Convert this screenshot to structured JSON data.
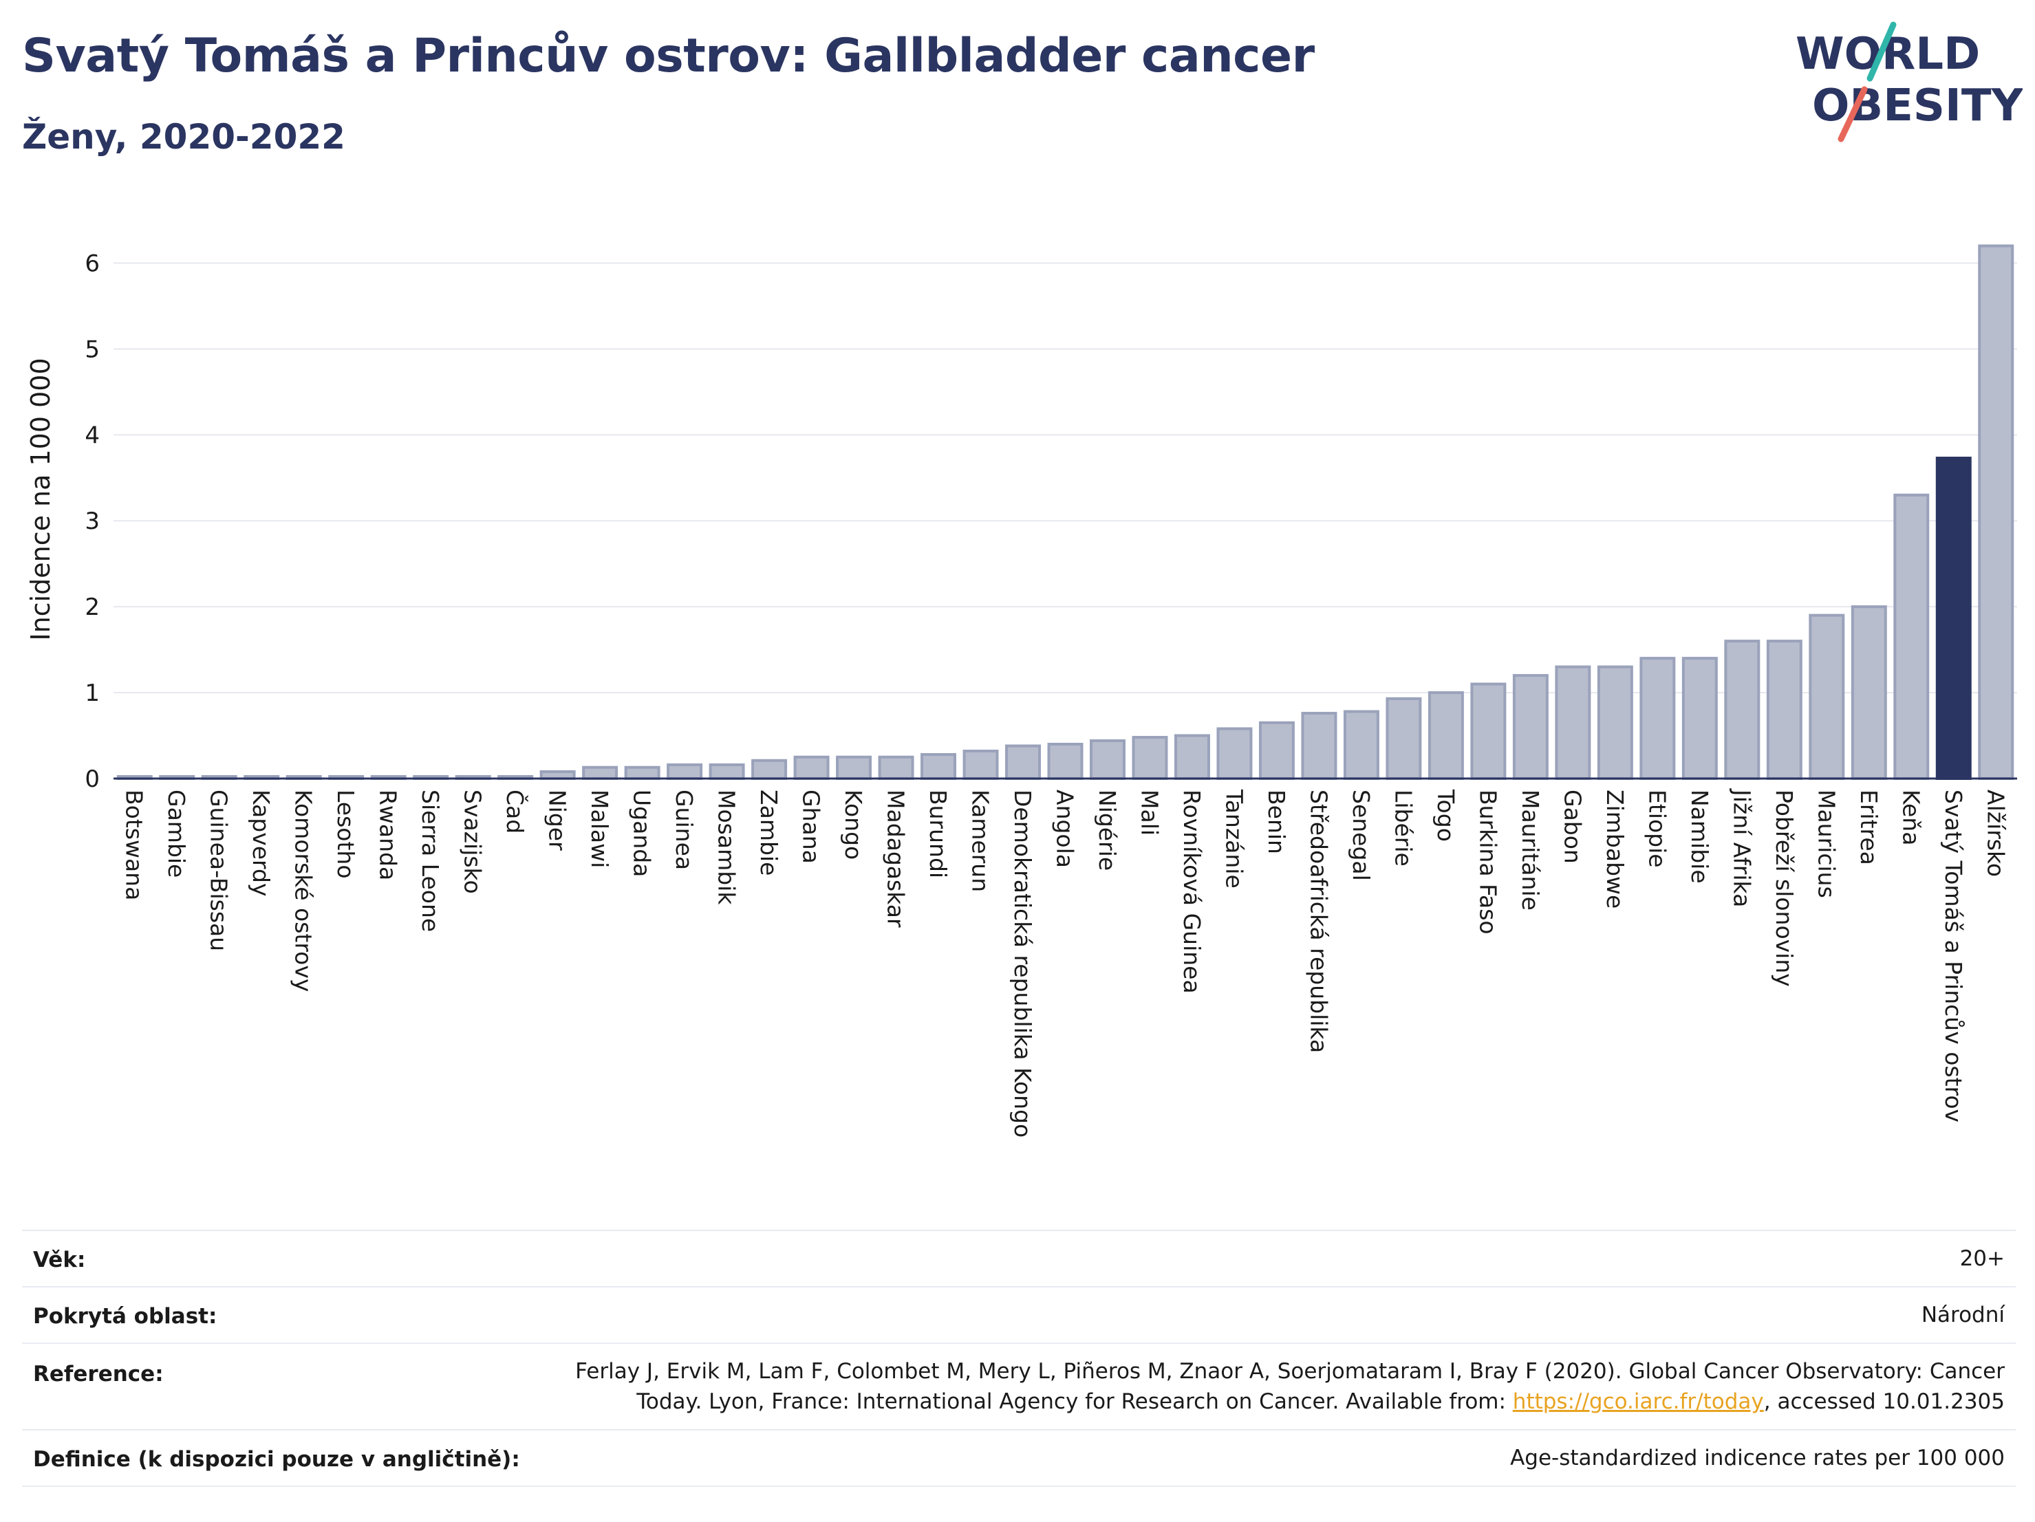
{
  "header": {
    "title": "Svatý Tomáš a Princův ostrov: Gallbladder cancer",
    "subtitle": "Ženy, 2020-2022",
    "logo_line1": "WORLD",
    "logo_line2": "OBESITY"
  },
  "colors": {
    "title": "#2b3561",
    "bar": "#b7bdcc",
    "bar_border": "#9aa2bb",
    "highlight": "#2b3561",
    "link": "#e8a321"
  },
  "chart_data": {
    "type": "bar",
    "ylabel": "Incidence na 100 000",
    "ylim": [
      0,
      6.5
    ],
    "yticks": [
      0,
      1,
      2,
      3,
      4,
      5,
      6
    ],
    "grid": true,
    "highlight": "Svatý Tomáš a Princův ostrov",
    "categories": [
      "Botswana",
      "Gambie",
      "Guinea-Bissau",
      "Kapverdy",
      "Komorské ostrovy",
      "Lesotho",
      "Rwanda",
      "Sierra Leone",
      "Svazijsko",
      "Čad",
      "Niger",
      "Malawi",
      "Uganda",
      "Guinea",
      "Mosambik",
      "Zambie",
      "Ghana",
      "Kongo",
      "Madagaskar",
      "Burundi",
      "Kamerun",
      "Demokratická republika Kongo",
      "Angola",
      "Nigérie",
      "Mali",
      "Rovníková Guinea",
      "Tanzánie",
      "Benin",
      "Středoafrická republika",
      "Senegal",
      "Libérie",
      "Togo",
      "Burkina Faso",
      "Mauritánie",
      "Gabon",
      "Zimbabwe",
      "Etiopie",
      "Namibie",
      "Jižní Afrika",
      "Pobřeží slonoviny",
      "Mauricius",
      "Eritrea",
      "Keňa",
      "Svatý Tomáš a Princův ostrov",
      "Alžírsko"
    ],
    "values": [
      0.01,
      0.01,
      0.01,
      0.01,
      0.01,
      0.01,
      0.01,
      0.01,
      0.01,
      0.01,
      0.08,
      0.13,
      0.13,
      0.16,
      0.16,
      0.21,
      0.25,
      0.25,
      0.25,
      0.28,
      0.32,
      0.38,
      0.4,
      0.44,
      0.48,
      0.5,
      0.58,
      0.65,
      0.76,
      0.78,
      0.93,
      1.0,
      1.1,
      1.2,
      1.3,
      1.3,
      1.4,
      1.4,
      1.6,
      1.6,
      1.9,
      2.0,
      3.3,
      3.73,
      6.2
    ]
  },
  "info": {
    "age_label": "Věk:",
    "age_value": "20+",
    "coverage_label": "Pokrytá oblast:",
    "coverage_value": "Národní",
    "reference_label": "Reference:",
    "reference_line1": "Ferlay J, Ervik M, Lam F, Colombet M, Mery L, Piñeros M, Znaor A, Soerjomataram I, Bray F (2020). Global Cancer Observatory: Cancer",
    "reference_line2_pre": "Today. Lyon, France: International Agency for Research on Cancer. Available from: ",
    "reference_link": "https://gco.iarc.fr/today",
    "reference_line2_post": ", accessed 10.01.2305",
    "definition_label": "Definice (k dispozici pouze v angličtině):",
    "definition_value": "Age-standardized indicence rates per 100 000"
  }
}
